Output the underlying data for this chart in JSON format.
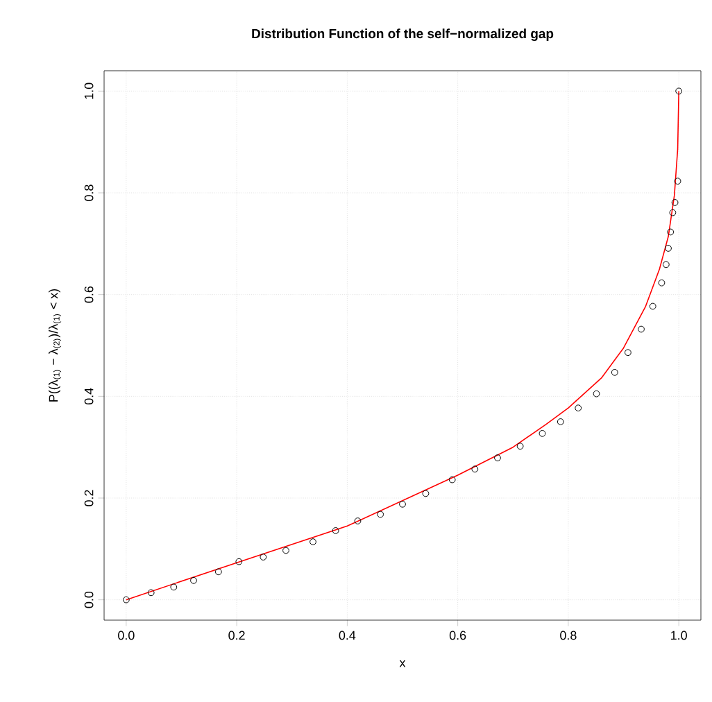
{
  "chart_data": {
    "type": "scatter",
    "title": "Distribution Function of the self−normalized gap",
    "xlabel": "x",
    "ylabel": "P((λ$_{(1)}$ − λ$_{(2)}$)/λ$_{(1)}$ < x)",
    "xlim": [
      -0.04,
      1.04
    ],
    "ylim": [
      -0.04,
      1.04
    ],
    "xticks": [
      {
        "value": 0,
        "label": "0.0"
      },
      0.2,
      0.4,
      0.6,
      0.8,
      {
        "value": 1,
        "label": "1.0"
      }
    ],
    "yticks": [
      {
        "value": 0,
        "label": "0.0"
      },
      0.2,
      0.4,
      0.6,
      0.8,
      {
        "value": 1,
        "label": "1.0"
      }
    ],
    "grid": true,
    "series": [
      {
        "marker": "circle",
        "color": "#000000",
        "x": [
          0,
          0.045,
          0.086,
          0.122,
          0.167,
          0.204,
          0.248,
          0.289,
          0.338,
          0.379,
          0.419,
          0.46,
          0.5,
          0.542,
          0.59,
          0.631,
          0.672,
          0.713,
          0.753,
          0.786,
          0.818,
          0.851,
          0.884,
          0.908,
          0.932,
          0.953,
          0.969,
          0.977,
          0.981,
          0.985,
          0.989,
          0.993,
          0.998,
          1.0
        ],
        "values": [
          0,
          0.014,
          0.025,
          0.038,
          0.055,
          0.075,
          0.084,
          0.097,
          0.114,
          0.136,
          0.155,
          0.168,
          0.188,
          0.209,
          0.236,
          0.257,
          0.279,
          0.302,
          0.327,
          0.35,
          0.377,
          0.405,
          0.447,
          0.486,
          0.532,
          0.577,
          0.623,
          0.659,
          0.691,
          0.723,
          0.761,
          0.781,
          0.823,
          1.0
        ]
      },
      {
        "type": "line",
        "marker": "none",
        "line_style": "solid",
        "color": "#ff0000",
        "x": [
          0,
          0.2,
          0.4,
          0.6,
          0.7,
          0.76,
          0.8,
          0.86,
          0.9,
          0.94,
          0.965,
          0.981,
          0.992,
          0.998,
          1.0
        ],
        "values": [
          0,
          0.073,
          0.145,
          0.245,
          0.3,
          0.345,
          0.377,
          0.436,
          0.495,
          0.577,
          0.65,
          0.714,
          0.795,
          0.886,
          1.0
        ]
      }
    ]
  }
}
